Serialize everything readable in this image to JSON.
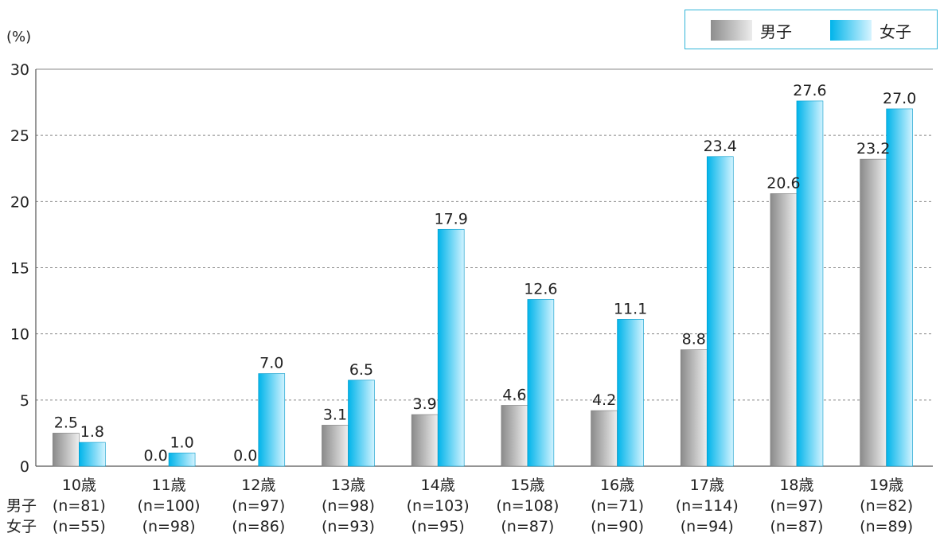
{
  "legend": {
    "male_label": "男子",
    "female_label": "女子"
  },
  "unit_label": "(%)",
  "row_labels": {
    "male": "男子",
    "female": "女子"
  },
  "colors": {
    "male": "#9a9a9a",
    "female": "#00b4ea",
    "grid": "#888888",
    "legend_border": "#33b5d8"
  },
  "chart_data": {
    "type": "bar",
    "ylim": [
      0,
      30
    ],
    "yticks": [
      0,
      5,
      10,
      15,
      20,
      25,
      30
    ],
    "grid": true,
    "legend_position": "top-right",
    "categories": [
      "10歳",
      "11歳",
      "12歳",
      "13歳",
      "14歳",
      "15歳",
      "16歳",
      "17歳",
      "18歳",
      "19歳"
    ],
    "n_male": [
      "(n=81)",
      "(n=100)",
      "(n=97)",
      "(n=98)",
      "(n=103)",
      "(n=108)",
      "(n=71)",
      "(n=114)",
      "(n=97)",
      "(n=82)"
    ],
    "n_female": [
      "(n=55)",
      "(n=98)",
      "(n=86)",
      "(n=93)",
      "(n=95)",
      "(n=87)",
      "(n=90)",
      "(n=94)",
      "(n=87)",
      "(n=89)"
    ],
    "series": [
      {
        "name": "男子",
        "values": [
          2.5,
          0.0,
          0.0,
          3.1,
          3.9,
          4.6,
          4.2,
          8.8,
          20.6,
          23.2
        ]
      },
      {
        "name": "女子",
        "values": [
          1.8,
          1.0,
          7.0,
          6.5,
          17.9,
          12.6,
          11.1,
          23.4,
          27.6,
          27.0
        ]
      }
    ]
  }
}
